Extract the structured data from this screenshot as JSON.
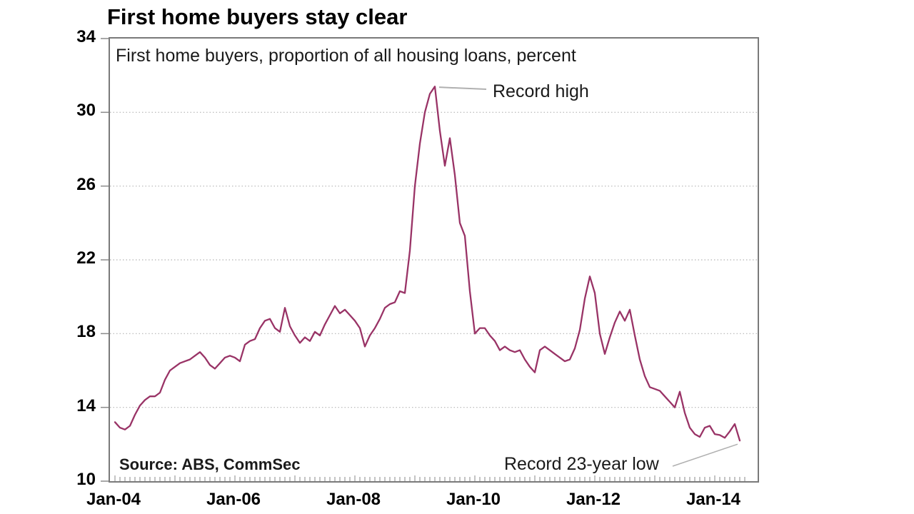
{
  "chart": {
    "title": "First home buyers stay clear",
    "subtitle": "First home buyers, proportion of all housing loans, percent",
    "source": "Source: ABS, CommSec",
    "annotations": {
      "record_high": "Record high",
      "record_low": "Record 23-year low"
    }
  },
  "chart_data": {
    "type": "line",
    "title": "First home buyers stay clear",
    "subtitle": "First home buyers, proportion of all housing loans, percent",
    "source": "Source: ABS, CommSec",
    "xlabel": "",
    "ylabel": "percent",
    "x_frequency": "monthly",
    "x_start": "Jan-04",
    "x_end": "Jun-14",
    "x_tick_labels": [
      "Jan-04",
      "Jan-06",
      "Jan-08",
      "Jan-10",
      "Jan-12",
      "Jan-14"
    ],
    "y_tick_values": [
      34,
      30,
      26,
      22,
      18,
      14,
      10
    ],
    "grid_values": [
      30,
      26,
      22,
      18,
      14
    ],
    "ylim": [
      10,
      34
    ],
    "grid": "dotted horizontal",
    "legend": "none",
    "line_color": "#993366",
    "grid_color": "#b5b5b5",
    "axis_color": "#7a7a7a",
    "annotations": [
      {
        "label": "Record high",
        "month": "May-09",
        "value": 31.4
      },
      {
        "label": "Record 23-year low",
        "month": "Jun-14",
        "value": 12.2
      }
    ],
    "series": [
      {
        "name": "First home buyers, proportion of all housing loans, percent",
        "values": [
          13.2,
          12.9,
          12.8,
          13.0,
          13.6,
          14.1,
          14.4,
          14.6,
          14.6,
          14.8,
          15.5,
          16.0,
          16.2,
          16.4,
          16.5,
          16.6,
          16.8,
          17.0,
          16.7,
          16.3,
          16.1,
          16.4,
          16.7,
          16.8,
          16.7,
          16.5,
          17.4,
          17.6,
          17.7,
          18.3,
          18.7,
          18.8,
          18.3,
          18.1,
          19.4,
          18.4,
          17.9,
          17.5,
          17.8,
          17.6,
          18.1,
          17.9,
          18.5,
          19.0,
          19.5,
          19.1,
          19.3,
          19.0,
          18.7,
          18.3,
          17.3,
          17.9,
          18.3,
          18.8,
          19.4,
          19.6,
          19.7,
          20.3,
          20.2,
          22.5,
          26.0,
          28.3,
          30.0,
          31.0,
          31.4,
          29.0,
          27.1,
          28.6,
          26.6,
          24.0,
          23.3,
          20.3,
          18.0,
          18.3,
          18.3,
          17.9,
          17.6,
          17.1,
          17.3,
          17.1,
          17.0,
          17.1,
          16.6,
          16.2,
          15.9,
          17.1,
          17.3,
          17.1,
          16.9,
          16.7,
          16.5,
          16.6,
          17.2,
          18.2,
          19.9,
          21.1,
          20.2,
          18.0,
          16.9,
          17.8,
          18.6,
          19.2,
          18.7,
          19.3,
          17.9,
          16.6,
          15.7,
          15.1,
          15.0,
          14.9,
          14.6,
          14.3,
          14.0,
          14.85,
          13.7,
          12.9,
          12.55,
          12.4,
          12.9,
          13.0,
          12.55,
          12.5,
          12.35,
          12.7,
          13.1,
          12.2
        ]
      }
    ]
  }
}
